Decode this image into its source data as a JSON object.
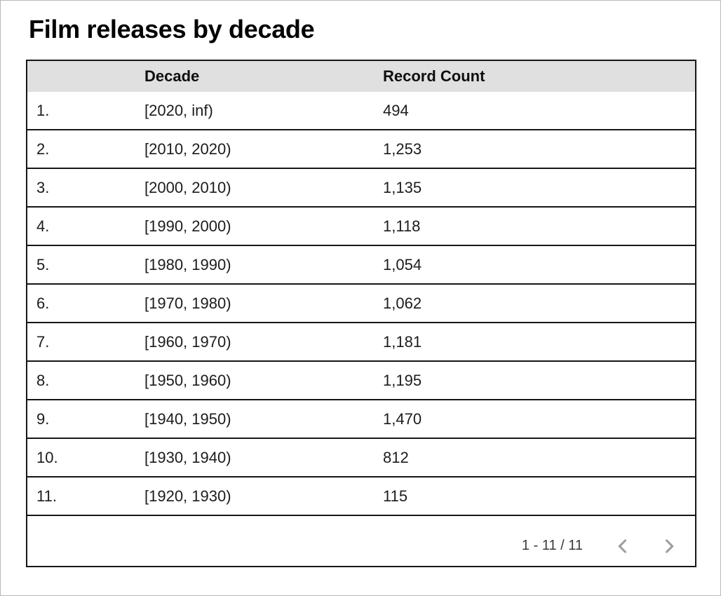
{
  "chart_data": {
    "type": "table",
    "title": "Film releases by decade",
    "columns": [
      "Decade",
      "Record Count"
    ],
    "rows": [
      {
        "index": "1.",
        "decade": "[2020, inf)",
        "count": "494",
        "count_value": 494
      },
      {
        "index": "2.",
        "decade": "[2010, 2020)",
        "count": "1,253",
        "count_value": 1253
      },
      {
        "index": "3.",
        "decade": "[2000, 2010)",
        "count": "1,135",
        "count_value": 1135
      },
      {
        "index": "4.",
        "decade": "[1990, 2000)",
        "count": "1,118",
        "count_value": 1118
      },
      {
        "index": "5.",
        "decade": "[1980, 1990)",
        "count": "1,054",
        "count_value": 1054
      },
      {
        "index": "6.",
        "decade": "[1970, 1980)",
        "count": "1,062",
        "count_value": 1062
      },
      {
        "index": "7.",
        "decade": "[1960, 1970)",
        "count": "1,181",
        "count_value": 1181
      },
      {
        "index": "8.",
        "decade": "[1950, 1960)",
        "count": "1,195",
        "count_value": 1195
      },
      {
        "index": "9.",
        "decade": "[1940, 1950)",
        "count": "1,470",
        "count_value": 1470
      },
      {
        "index": "10.",
        "decade": "[1930, 1940)",
        "count": "812",
        "count_value": 812
      },
      {
        "index": "11.",
        "decade": "[1920, 1930)",
        "count": "115",
        "count_value": 115
      }
    ]
  },
  "pagination": {
    "label": "1 - 11 / 11",
    "prev_icon": "chevron-left",
    "next_icon": "chevron-right"
  },
  "colors": {
    "header_bg": "#e0e0e0",
    "table_border": "#161616",
    "page_border": "#b9b9b9",
    "chevron": "#9e9e9e",
    "text": "#1c1c1c"
  }
}
